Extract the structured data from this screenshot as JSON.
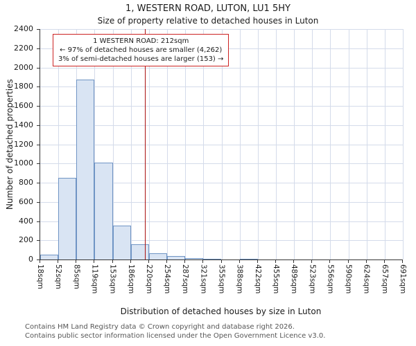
{
  "annotation": {
    "line1": "1 WESTERN ROAD: 212sqm",
    "line2": "← 97% of detached houses are smaller (4,262)",
    "line3": "3% of semi-detached houses are larger (153) →"
  },
  "footer": {
    "line1": "Contains HM Land Registry data © Crown copyright and database right 2026.",
    "line2": "Contains public sector information licensed under the Open Government Licence v3.0."
  },
  "chart_data": {
    "type": "bar",
    "title": "1, WESTERN ROAD, LUTON, LU1 5HY",
    "subtitle": "Size of property relative to detached houses in Luton",
    "xlabel": "Distribution of detached houses by size in Luton",
    "ylabel": "Number of detached properties",
    "tick_labels": [
      "18sqm",
      "52sqm",
      "85sqm",
      "119sqm",
      "153sqm",
      "186sqm",
      "220sqm",
      "254sqm",
      "287sqm",
      "321sqm",
      "355sqm",
      "388sqm",
      "422sqm",
      "455sqm",
      "489sqm",
      "523sqm",
      "556sqm",
      "590sqm",
      "624sqm",
      "657sqm",
      "691sqm"
    ],
    "bin_edges_sqm": [
      18,
      52,
      85,
      119,
      153,
      186,
      220,
      254,
      287,
      321,
      355,
      388,
      422,
      455,
      489,
      523,
      556,
      590,
      624,
      657,
      691
    ],
    "values": [
      50,
      850,
      1875,
      1010,
      350,
      160,
      65,
      35,
      15,
      8,
      0,
      10,
      0,
      0,
      0,
      0,
      0,
      0,
      0,
      0
    ],
    "ylim": [
      0,
      2400
    ],
    "ytick_step": 200,
    "marker_value_sqm": 212,
    "marker_color": "#aa1111",
    "bar_fill": "#d9e4f3",
    "bar_border": "#6f94c4",
    "grid": true,
    "legend": "none"
  }
}
